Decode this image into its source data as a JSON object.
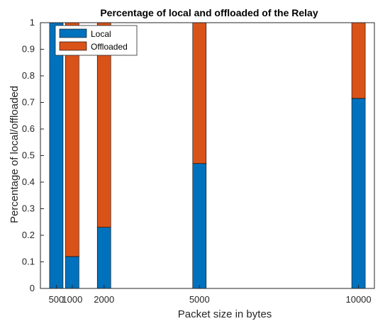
{
  "chart_data": {
    "type": "bar",
    "stacked": true,
    "title": "Percentage of local and offloaded of the Relay",
    "xlabel": "Packet size in bytes",
    "ylabel": "Percentage of local/offloaded",
    "x": [
      500,
      1000,
      2000,
      5000,
      10000
    ],
    "x_tick_labels": [
      "500",
      "1000",
      "2000",
      "5000",
      "10000"
    ],
    "xlim": [
      0,
      10500
    ],
    "ylim": [
      0,
      1
    ],
    "y_ticks": [
      0,
      0.1,
      0.2,
      0.3,
      0.4,
      0.5,
      0.6,
      0.7,
      0.8,
      0.9,
      1
    ],
    "y_tick_labels": [
      "0",
      "0.1",
      "0.2",
      "0.3",
      "0.4",
      "0.5",
      "0.6",
      "0.7",
      "0.8",
      "0.9",
      "1"
    ],
    "series": [
      {
        "name": "Local",
        "color": "#0072BD",
        "values": [
          1.0,
          0.12,
          0.23,
          0.47,
          0.715
        ]
      },
      {
        "name": "Offloaded",
        "color": "#D95319",
        "values": [
          0.0,
          0.88,
          0.77,
          0.53,
          0.285
        ]
      }
    ],
    "grid": false,
    "legend_position": "top-left"
  }
}
